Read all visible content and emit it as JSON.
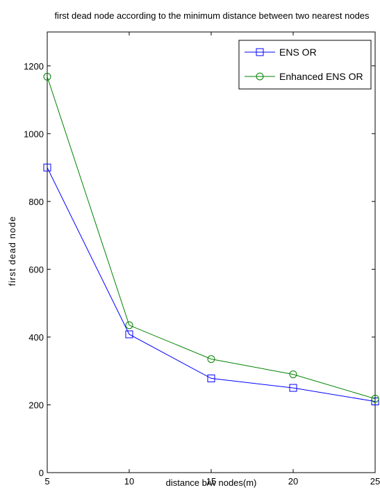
{
  "chart_data": {
    "type": "line",
    "title": "first dead node according to the minimum distance between two nearest nodes",
    "xlabel": "distance b/w nodes(m)",
    "ylabel": "first dead node",
    "x": [
      5,
      10,
      15,
      20,
      25
    ],
    "xticks": [
      "5",
      "10",
      "15",
      "20",
      "25"
    ],
    "yticks": [
      "0",
      "200",
      "400",
      "600",
      "800",
      "1000",
      "1200"
    ],
    "xlim": [
      5,
      25
    ],
    "ylim": [
      0,
      1300
    ],
    "grid": false,
    "legend_position": "top-right",
    "series": [
      {
        "name": "ENS OR",
        "values": [
          900,
          408,
          278,
          250,
          210
        ],
        "color": "#0000ff",
        "marker": "square"
      },
      {
        "name": "Enhanced ENS OR",
        "values": [
          1168,
          435,
          335,
          290,
          218
        ],
        "color": "#008000",
        "marker": "circle"
      }
    ]
  }
}
